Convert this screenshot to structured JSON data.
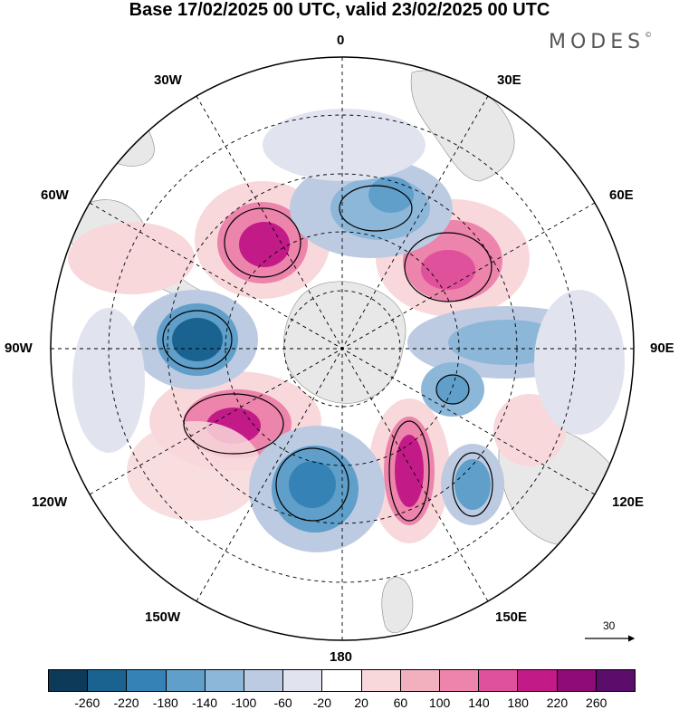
{
  "title": "Base 17/02/2025 00 UTC, valid 23/02/2025 00 UTC",
  "brand": {
    "text": "MODES",
    "mark": "©"
  },
  "longitude_labels": {
    "top": "0",
    "bottom": "180",
    "left": "90W",
    "right": "90E",
    "upper_left_30": "30W",
    "upper_right_30": "30E",
    "upper_left_60": "60W",
    "upper_right_60": "60E",
    "lower_left_120": "120W",
    "lower_right_120": "120E",
    "lower_left_150": "150W",
    "lower_right_150": "150E"
  },
  "reference_vector": {
    "label": "30"
  },
  "colorbar": {
    "colors": [
      "#0d3a58",
      "#1a628f",
      "#3583b6",
      "#5f9fc9",
      "#8db7d8",
      "#bccbe2",
      "#e1e3ef",
      "#ffffff",
      "#f8d8db",
      "#f2b0bf",
      "#ec84ab",
      "#e0519c",
      "#c21b88",
      "#8f0c78",
      "#5a0d6a"
    ],
    "ticks": [
      "-260",
      "-220",
      "-180",
      "-140",
      "-100",
      "-60",
      "-20",
      "20",
      "60",
      "100",
      "140",
      "180",
      "220",
      "260"
    ]
  }
}
